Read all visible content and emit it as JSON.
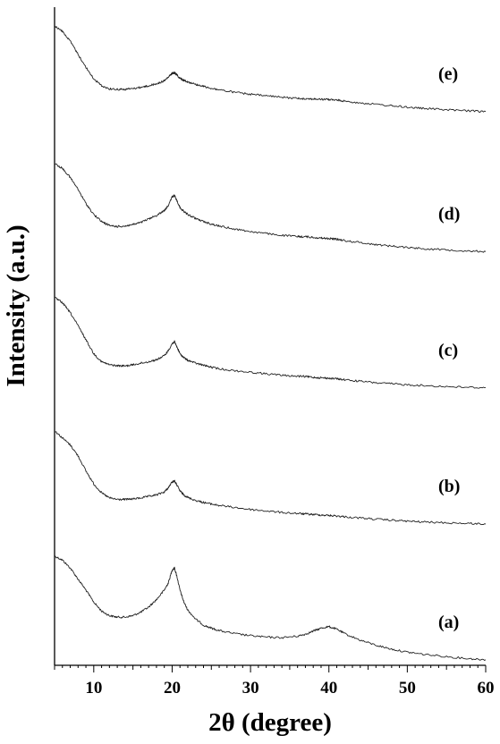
{
  "chart_data": {
    "type": "line",
    "title": "",
    "xlabel": "2θ (degree)",
    "ylabel": "Intensity (a.u.)",
    "xlim": [
      5,
      60
    ],
    "x_ticks": [
      10,
      20,
      30,
      40,
      50,
      60
    ],
    "y_ticks_shown": false,
    "stacked_offset_traces": true,
    "grid": false,
    "legend": "labels beside each trace, right side",
    "x": [
      5,
      6,
      7,
      8,
      9,
      10,
      11,
      12,
      13,
      14,
      15,
      16,
      17,
      18,
      19,
      19.5,
      20,
      20.3,
      20.6,
      21,
      21.5,
      22,
      23,
      24,
      25,
      26,
      28,
      30,
      32,
      34,
      36,
      37,
      38,
      39,
      40,
      41,
      42,
      44,
      46,
      48,
      50,
      52,
      55,
      58,
      60
    ],
    "series": [
      {
        "name": "(a)",
        "offset": 0,
        "values": [
          1.1,
          1.06,
          0.98,
          0.87,
          0.76,
          0.64,
          0.55,
          0.505,
          0.49,
          0.49,
          0.505,
          0.54,
          0.59,
          0.665,
          0.76,
          0.83,
          0.96,
          0.98,
          0.9,
          0.76,
          0.64,
          0.56,
          0.47,
          0.41,
          0.38,
          0.355,
          0.325,
          0.305,
          0.29,
          0.285,
          0.3,
          0.32,
          0.35,
          0.38,
          0.395,
          0.37,
          0.325,
          0.26,
          0.21,
          0.17,
          0.14,
          0.12,
          0.095,
          0.075,
          0.065
        ]
      },
      {
        "name": "(b)",
        "offset": 1.35,
        "values": [
          1.0,
          0.93,
          0.86,
          0.75,
          0.6,
          0.47,
          0.38,
          0.33,
          0.315,
          0.315,
          0.32,
          0.33,
          0.345,
          0.36,
          0.39,
          0.43,
          0.49,
          0.5,
          0.46,
          0.4,
          0.36,
          0.335,
          0.305,
          0.285,
          0.27,
          0.255,
          0.235,
          0.215,
          0.2,
          0.185,
          0.175,
          0.17,
          0.165,
          0.16,
          0.155,
          0.15,
          0.142,
          0.13,
          0.118,
          0.108,
          0.098,
          0.09,
          0.082,
          0.075,
          0.07
        ]
      },
      {
        "name": "(c)",
        "offset": 2.68,
        "values": [
          1.0,
          0.95,
          0.85,
          0.72,
          0.58,
          0.44,
          0.36,
          0.33,
          0.32,
          0.318,
          0.33,
          0.345,
          0.36,
          0.38,
          0.42,
          0.47,
          0.54,
          0.56,
          0.51,
          0.44,
          0.4,
          0.375,
          0.345,
          0.325,
          0.305,
          0.29,
          0.27,
          0.255,
          0.24,
          0.225,
          0.215,
          0.212,
          0.205,
          0.2,
          0.195,
          0.19,
          0.18,
          0.165,
          0.15,
          0.14,
          0.13,
          0.122,
          0.112,
          0.104,
          0.1
        ]
      },
      {
        "name": "(d)",
        "offset": 4.02,
        "values": [
          1.0,
          0.95,
          0.86,
          0.74,
          0.6,
          0.49,
          0.42,
          0.38,
          0.37,
          0.375,
          0.39,
          0.41,
          0.445,
          0.48,
          0.53,
          0.58,
          0.665,
          0.68,
          0.63,
          0.56,
          0.52,
          0.49,
          0.45,
          0.42,
          0.395,
          0.375,
          0.345,
          0.32,
          0.3,
          0.282,
          0.27,
          0.268,
          0.262,
          0.255,
          0.25,
          0.244,
          0.23,
          0.21,
          0.19,
          0.175,
          0.162,
          0.15,
          0.137,
          0.126,
          0.12
        ]
      },
      {
        "name": "(e)",
        "offset": 5.41,
        "values": [
          0.98,
          0.93,
          0.83,
          0.7,
          0.57,
          0.455,
          0.385,
          0.355,
          0.35,
          0.35,
          0.358,
          0.37,
          0.385,
          0.405,
          0.435,
          0.47,
          0.51,
          0.515,
          0.495,
          0.46,
          0.44,
          0.425,
          0.4,
          0.38,
          0.36,
          0.345,
          0.32,
          0.3,
          0.285,
          0.27,
          0.26,
          0.257,
          0.253,
          0.25,
          0.248,
          0.242,
          0.232,
          0.215,
          0.2,
          0.185,
          0.172,
          0.16,
          0.146,
          0.134,
          0.128
        ]
      }
    ]
  }
}
